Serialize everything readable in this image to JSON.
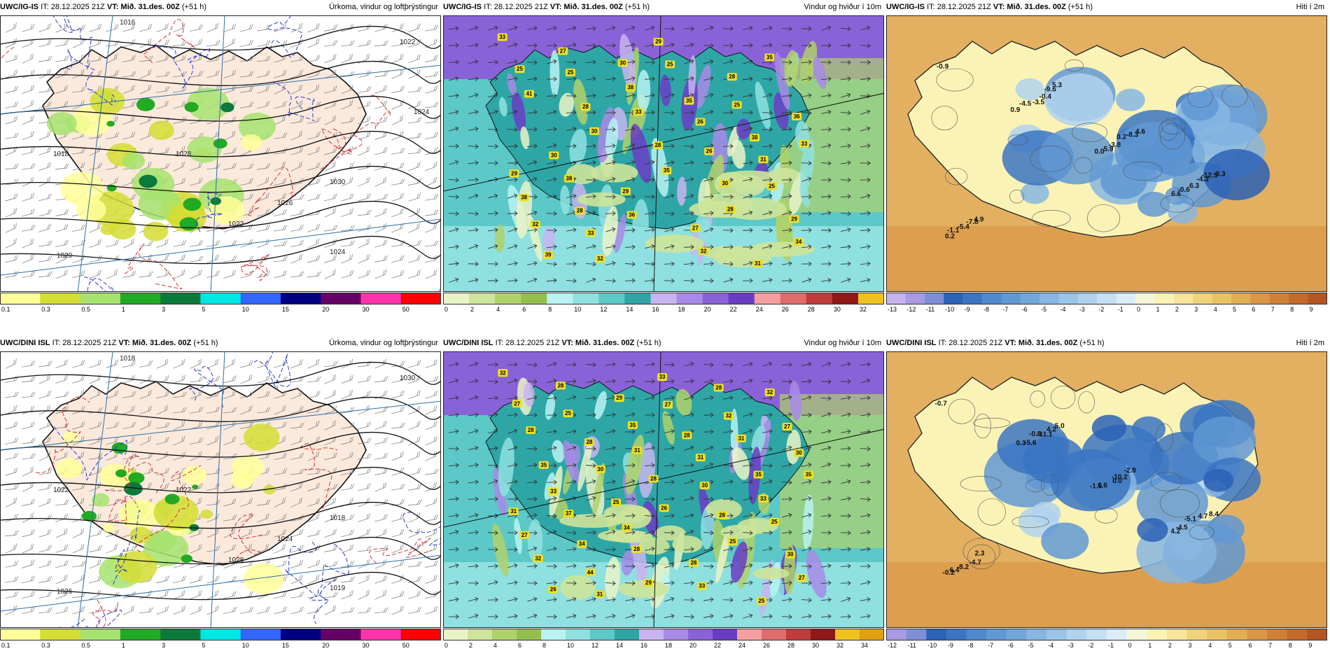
{
  "rows": [
    {
      "id": "igis",
      "model": "UWC/IG-IS",
      "it": "IT: 28.12.2025 21Z",
      "vt_label": "VT:",
      "vt": "Mið. 31.des. 00Z",
      "lead": "(+51 h)"
    },
    {
      "id": "dini",
      "model": "UWC/DINI ISL",
      "it": "IT: 28.12.2025 21Z",
      "vt_label": "VT:",
      "vt": "Mið. 31.des. 00Z",
      "lead": "(+51 h)"
    }
  ],
  "params": {
    "precip": "Úrkoma, vindur og loftþrýstingur",
    "wind": "Vindur og hviður í 10m",
    "temp": "Hiti í 2m"
  },
  "scales": {
    "precip": {
      "labels": [
        "0.1",
        "0.3",
        "0.5",
        "1",
        "3",
        "5",
        "10",
        "15",
        "20",
        "30",
        "50"
      ],
      "colors": [
        "#ffff99",
        "#d4dd33",
        "#a6e36e",
        "#22aa22",
        "#0b7a3a",
        "#00e5e5",
        "#3366ff",
        "#000080",
        "#660066",
        "#ff33aa",
        "#ff0000"
      ]
    },
    "wind_top": {
      "labels": [
        "0",
        "2",
        "4",
        "6",
        "8",
        "10",
        "12",
        "14",
        "16",
        "18",
        "20",
        "22",
        "24",
        "26",
        "28",
        "30",
        "32"
      ],
      "colors": [
        "#eaf3c6",
        "#cde49a",
        "#afd16a",
        "#94bf4e",
        "#b8f2f2",
        "#8fe0e0",
        "#5cc8c8",
        "#2ea6a6",
        "#c8b4f0",
        "#a88ae6",
        "#8a62d8",
        "#6a3cc4",
        "#f4a0a0",
        "#e06c6c",
        "#c03c3c",
        "#901818",
        "#f0c020"
      ]
    },
    "wind_bottom": {
      "labels": [
        "0",
        "2",
        "4",
        "6",
        "8",
        "10",
        "12",
        "14",
        "16",
        "18",
        "20",
        "22",
        "24",
        "26",
        "28",
        "30",
        "32",
        "34"
      ],
      "colors": [
        "#eaf3c6",
        "#cde49a",
        "#afd16a",
        "#94bf4e",
        "#b8f2f2",
        "#8fe0e0",
        "#5cc8c8",
        "#2ea6a6",
        "#c8b4f0",
        "#a88ae6",
        "#8a62d8",
        "#6a3cc4",
        "#f4a0a0",
        "#e06c6c",
        "#c03c3c",
        "#901818",
        "#f0c020",
        "#e0a010"
      ]
    },
    "temp_top": {
      "labels": [
        "-13",
        "-12",
        "-11",
        "-10",
        "-9",
        "-8",
        "-7",
        "-6",
        "-5",
        "-4",
        "-3",
        "-2",
        "-1",
        "0",
        "1",
        "2",
        "3",
        "4",
        "5",
        "6",
        "7",
        "8",
        "9"
      ],
      "colors": [
        "#c9b3ee",
        "#a99ae3",
        "#7e8fd6",
        "#2c62b6",
        "#3a74c2",
        "#4f88cc",
        "#6098d4",
        "#72a6da",
        "#87b6e2",
        "#9ac4e8",
        "#b0d2ee",
        "#c6e0f3",
        "#dcecf7",
        "#f4f6dc",
        "#fbf3b6",
        "#f7e49a",
        "#f0d47c",
        "#e9c266",
        "#e1ad55",
        "#d89646",
        "#ce7f38",
        "#c2692c",
        "#b45522"
      ]
    },
    "temp_bottom": {
      "labels": [
        "-12",
        "-11",
        "-10",
        "-9",
        "-8",
        "-7",
        "-6",
        "-5",
        "-4",
        "-3",
        "-2",
        "-1",
        "0",
        "1",
        "2",
        "3",
        "4",
        "5",
        "6",
        "7",
        "8",
        "9"
      ],
      "colors": [
        "#a99ae3",
        "#7e8fd6",
        "#2c62b6",
        "#3a74c2",
        "#4f88cc",
        "#6098d4",
        "#72a6da",
        "#87b6e2",
        "#9ac4e8",
        "#b0d2ee",
        "#c6e0f3",
        "#dcecf7",
        "#f4f6dc",
        "#fbf3b6",
        "#f7e49a",
        "#f0d47c",
        "#e9c266",
        "#e1ad55",
        "#d89646",
        "#ce7f38",
        "#c2692c",
        "#b45522"
      ]
    }
  },
  "labels": {
    "igis": {
      "pressure": [
        "1016",
        "1018",
        "1020",
        "1022",
        "1024",
        "1026",
        "1028",
        "1030",
        "1022",
        "1024"
      ],
      "gusts": [
        "33",
        "25",
        "33",
        "26",
        "25",
        "32",
        "32",
        "25",
        "25",
        "33",
        "38",
        "36",
        "32",
        "35",
        "41",
        "30",
        "35",
        "28",
        "34",
        "27",
        "38",
        "26",
        "31",
        "38",
        "33",
        "29",
        "28",
        "36",
        "30",
        "29",
        "27",
        "31",
        "25",
        "28",
        "28",
        "30",
        "29",
        "39",
        "30",
        "35",
        "38",
        "29",
        "28"
      ],
      "temps": [
        "-0.9",
        "0.9",
        "0.0",
        "6.6",
        "0.2",
        "-4.5",
        "5.9",
        "-0.6",
        "-1.1",
        "-3.5",
        "-3.8",
        "6.3",
        "-5.4",
        "-0.4",
        "0.2",
        "-4.3",
        "-7.8",
        "-9.6",
        "-8.3",
        "-12.3",
        "4.9",
        "5.3",
        "4.6",
        "-3.3"
      ]
    },
    "dini": {
      "pressure": [
        "1018",
        "1022",
        "1026",
        "1028",
        "1019",
        "1024",
        "1022",
        "1018",
        "1030"
      ],
      "gusts": [
        "32",
        "25",
        "31",
        "30",
        "25",
        "32",
        "31",
        "27",
        "31",
        "35",
        "37",
        "28",
        "33",
        "32",
        "28",
        "30",
        "26",
        "25",
        "27",
        "28",
        "35",
        "31",
        "33",
        "27",
        "44",
        "33",
        "32",
        "30",
        "33",
        "34",
        "28",
        "25",
        "27",
        "28",
        "28",
        "28",
        "30",
        "26",
        "29",
        "28",
        "35",
        "31",
        "34",
        "29",
        "28",
        "27",
        "35",
        "25"
      ],
      "temps": [
        "-0.7",
        "0.3",
        "-1.6",
        "4.2",
        "-0.2",
        "-5.6",
        "0.6",
        "-4.5",
        "6.4",
        "-0.8",
        "0.0",
        "-5.1",
        "-8.2",
        "-11.1",
        "-10.2",
        "4.7",
        "-4.7",
        "4.2",
        "-2.9",
        "8.4",
        "2.3",
        "5.0"
      ]
    }
  }
}
